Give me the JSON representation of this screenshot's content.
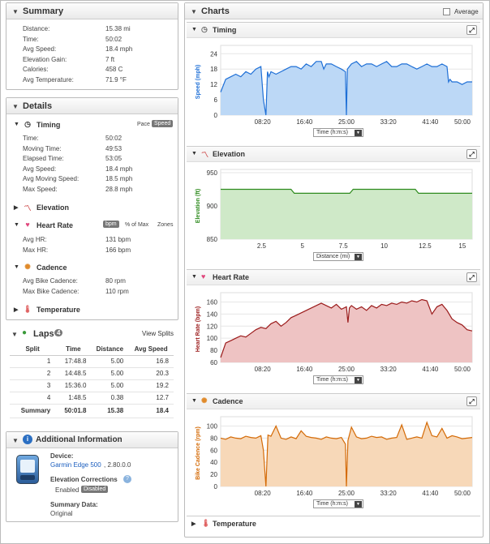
{
  "summary": {
    "title": "Summary",
    "rows": [
      {
        "label": "Distance:",
        "value": "15.38 mi"
      },
      {
        "label": "Time:",
        "value": "50:02"
      },
      {
        "label": "Avg Speed:",
        "value": "18.4 mph"
      },
      {
        "label": "Elevation Gain:",
        "value": "7 ft"
      },
      {
        "label": "Calories:",
        "value": "458 C"
      },
      {
        "label": "Avg Temperature:",
        "value": "71.9 °F"
      }
    ]
  },
  "details": {
    "title": "Details",
    "timing": {
      "label": "Timing",
      "pace": "Pace",
      "speed": "Speed",
      "rows": [
        {
          "label": "Time:",
          "value": "50:02"
        },
        {
          "label": "Moving Time:",
          "value": "49:53"
        },
        {
          "label": "Elapsed Time:",
          "value": "53:05"
        },
        {
          "label": "Avg Speed:",
          "value": "18.4 mph"
        },
        {
          "label": "Avg Moving Speed:",
          "value": "18.5 mph"
        },
        {
          "label": "Max Speed:",
          "value": "28.8 mph"
        }
      ]
    },
    "elevation": {
      "label": "Elevation"
    },
    "heart_rate": {
      "label": "Heart Rate",
      "bpm": "bpm",
      "pct_max": "% of Max",
      "zones": "Zones",
      "rows": [
        {
          "label": "Avg HR:",
          "value": "131 bpm"
        },
        {
          "label": "Max HR:",
          "value": "166 bpm"
        }
      ]
    },
    "cadence": {
      "label": "Cadence",
      "rows": [
        {
          "label": "Avg Bike Cadence:",
          "value": "80 rpm"
        },
        {
          "label": "Max Bike Cadence:",
          "value": "110 rpm"
        }
      ]
    },
    "temperature": {
      "label": "Temperature"
    }
  },
  "laps": {
    "title": "Laps",
    "count": "4",
    "view": "View Splits",
    "headers": [
      "Split",
      "Time",
      "Distance",
      "Avg Speed"
    ],
    "rows": [
      [
        "1",
        "17:48.8",
        "5.00",
        "16.8"
      ],
      [
        "2",
        "14:48.5",
        "5.00",
        "20.3"
      ],
      [
        "3",
        "15:36.0",
        "5.00",
        "19.2"
      ],
      [
        "4",
        "1:48.5",
        "0.38",
        "12.7"
      ]
    ],
    "summary": [
      "Summary",
      "50:01.8",
      "15.38",
      "18.4"
    ]
  },
  "additional": {
    "title": "Additional Information",
    "device_label": "Device:",
    "device_name": "Garmin Edge 500",
    "device_version": ", 2.80.0.0",
    "elev_corr_label": "Elevation Corrections",
    "enabled": "Enabled",
    "disabled": "Disabled",
    "summary_data_label": "Summary Data:",
    "summary_data_value": "Original"
  },
  "charts_panel": {
    "title": "Charts",
    "average": "Average"
  },
  "chart_data": [
    {
      "type": "area",
      "name": "Timing",
      "ylabel": "Speed (mph)",
      "ylim": [
        0,
        26
      ],
      "yticks": [
        0,
        6,
        12,
        18,
        24
      ],
      "xticks": [
        "08:20",
        "16:40",
        "25:00",
        "33:20",
        "41:40",
        "50:00"
      ],
      "x_select": "Time (h:m:s)",
      "color": "#1e6fd6",
      "fill": "#bcd8f6",
      "x": [
        0,
        1,
        2,
        3,
        4,
        5,
        6,
        7,
        8,
        8.5,
        9,
        9.3,
        9.6,
        10,
        11,
        12,
        13,
        14,
        15,
        16,
        17,
        18,
        19,
        20,
        20.5,
        21,
        22,
        23,
        24,
        24.8,
        25,
        25.2,
        26,
        27,
        28,
        29,
        30,
        31,
        32,
        33,
        34,
        35,
        36,
        37,
        38,
        39,
        40,
        41,
        42,
        43,
        44,
        45,
        45.3,
        45.6,
        46,
        47,
        48,
        49,
        50
      ],
      "y": [
        9,
        14,
        15,
        16,
        15,
        17,
        16,
        18,
        19,
        6,
        0,
        17,
        15,
        17,
        16,
        17,
        18,
        19,
        19,
        18,
        20,
        19,
        21,
        21,
        18,
        20,
        20,
        19,
        18,
        17,
        0,
        18,
        20,
        21,
        19,
        20,
        20,
        19,
        20,
        21,
        19,
        19,
        20,
        20,
        19,
        18,
        19,
        20,
        19,
        19,
        20,
        19,
        13,
        14,
        13,
        13,
        12,
        13,
        13
      ]
    },
    {
      "type": "area",
      "name": "Elevation",
      "ylabel": "Elevation (ft)",
      "ylim": [
        850,
        950
      ],
      "yticks": [
        850,
        900,
        950
      ],
      "xticks": [
        "2.5",
        "5",
        "7.5",
        "10",
        "12.5",
        "15"
      ],
      "x_select": "Distance (mi)",
      "color": "#2e8b1e",
      "fill": "#cfe9c8",
      "x": [
        0,
        4.3,
        4.5,
        7.9,
        8.1,
        11.9,
        12.1,
        15.38
      ],
      "y": [
        925,
        925,
        919,
        919,
        925,
        925,
        919,
        919
      ]
    },
    {
      "type": "area",
      "name": "Heart Rate",
      "ylabel": "Heart Rate (bpm)",
      "ylim": [
        60,
        170
      ],
      "yticks": [
        60,
        80,
        100,
        120,
        140,
        160
      ],
      "xticks": [
        "08:20",
        "16:40",
        "25:00",
        "33:20",
        "41:40",
        "50:00"
      ],
      "x_select": "Time (h:m:s)",
      "color": "#9b1b1b",
      "fill": "#eec3c3",
      "x": [
        0,
        0.5,
        1,
        2,
        3,
        4,
        5,
        6,
        7,
        8,
        9,
        10,
        11,
        12,
        13,
        14,
        15,
        16,
        17,
        18,
        19,
        20,
        21,
        22,
        23,
        24,
        25,
        25.3,
        25.6,
        26,
        27,
        28,
        29,
        30,
        31,
        32,
        33,
        34,
        35,
        36,
        37,
        38,
        39,
        40,
        41,
        42,
        43,
        44,
        45,
        46,
        47,
        48,
        49,
        50
      ],
      "y": [
        68,
        80,
        92,
        96,
        100,
        104,
        102,
        108,
        114,
        118,
        116,
        124,
        128,
        120,
        126,
        134,
        138,
        142,
        146,
        150,
        154,
        158,
        154,
        150,
        156,
        148,
        152,
        126,
        150,
        154,
        148,
        152,
        146,
        154,
        150,
        156,
        154,
        158,
        156,
        160,
        158,
        162,
        160,
        164,
        162,
        140,
        152,
        156,
        146,
        132,
        126,
        122,
        114,
        112
      ]
    },
    {
      "type": "area",
      "name": "Cadence",
      "ylabel": "Bike Cadence (rpm)",
      "ylim": [
        0,
        110
      ],
      "yticks": [
        0,
        20,
        40,
        60,
        80,
        100
      ],
      "xticks": [
        "08:20",
        "16:40",
        "25:00",
        "33:20",
        "41:40",
        "50:00"
      ],
      "x_select": "Time (h:m:s)",
      "color": "#d46a06",
      "fill": "#f7d8b8",
      "x": [
        0,
        1,
        2,
        3,
        4,
        5,
        6,
        7,
        8,
        8.5,
        9,
        9.4,
        10,
        11,
        12,
        13,
        14,
        15,
        16,
        17,
        18,
        19,
        20,
        21,
        22,
        23,
        24,
        24.8,
        25,
        25.3,
        26,
        27,
        28,
        29,
        30,
        31,
        32,
        33,
        34,
        35,
        36,
        37,
        38,
        39,
        40,
        41,
        42,
        43,
        44,
        45,
        46,
        47,
        48,
        49,
        50
      ],
      "y": [
        80,
        78,
        82,
        80,
        79,
        83,
        81,
        80,
        84,
        60,
        0,
        85,
        83,
        100,
        80,
        78,
        82,
        79,
        92,
        83,
        81,
        80,
        78,
        82,
        80,
        79,
        81,
        70,
        0,
        76,
        98,
        82,
        79,
        80,
        83,
        81,
        82,
        78,
        80,
        81,
        102,
        78,
        80,
        82,
        80,
        106,
        84,
        82,
        96,
        80,
        84,
        82,
        79,
        80,
        81
      ]
    }
  ],
  "temperature_chart": {
    "label": "Temperature"
  }
}
